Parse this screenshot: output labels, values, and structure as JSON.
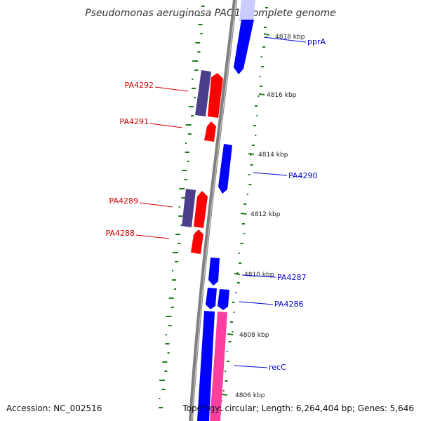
{
  "title": "Pseudomonas aeruginosa PAO1, complete genome",
  "accession_text": "Accession: NC_002516",
  "topology_text": "Topology: circular; Length: 6,264,404 bp; Genes: 5,646",
  "colors": {
    "backbone": "#808080",
    "forward_gene": "#0000ff",
    "reverse_gene": "#ff0000",
    "reverse_cds_dark": "#4b3f8c",
    "pink_feature": "#ff3fa0",
    "gc_dots": "#1a7a1a",
    "forward_label": "#0000cc",
    "reverse_label": "#cc0000"
  },
  "ticks": [
    {
      "label": "4818 kbp"
    },
    {
      "label": "4816 kbp"
    },
    {
      "label": "4814 kbp"
    },
    {
      "label": "4812 kbp"
    },
    {
      "label": "4810 kbp"
    },
    {
      "label": "4808 kbp"
    },
    {
      "label": "4806 kbp"
    }
  ],
  "forward_gene_labels": [
    {
      "name": "pprA"
    },
    {
      "name": "PA4290"
    },
    {
      "name": "PA4287"
    },
    {
      "name": "PA4286"
    },
    {
      "name": "recC"
    }
  ],
  "reverse_gene_labels": [
    {
      "name": "PA4292"
    },
    {
      "name": "PA4291"
    },
    {
      "name": "PA4289"
    },
    {
      "name": "PA4288"
    }
  ]
}
